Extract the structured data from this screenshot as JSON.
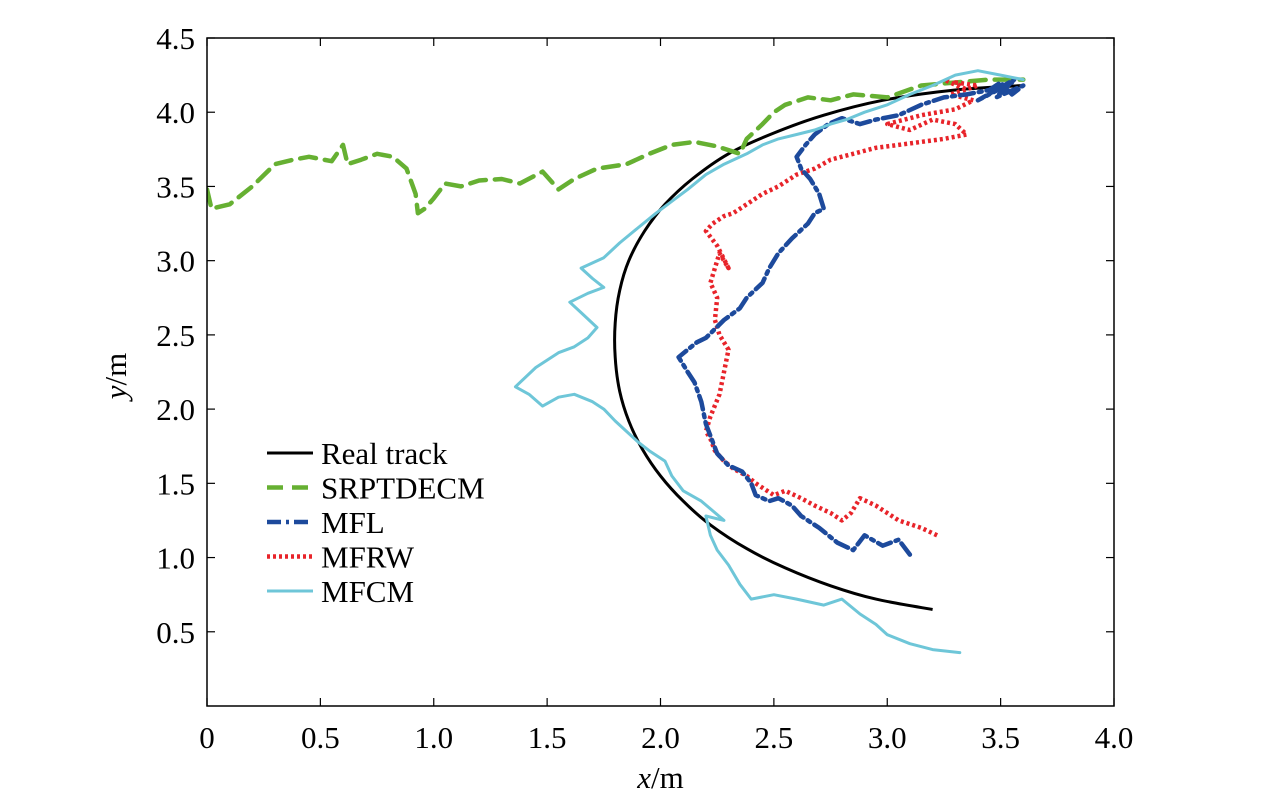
{
  "chart_data": {
    "type": "line",
    "title": "",
    "xlabel_var": "x",
    "xlabel_unit": "/m",
    "ylabel_var": "y",
    "ylabel_unit": "/m",
    "xlim": [
      0,
      4.0
    ],
    "ylim": [
      0,
      4.5
    ],
    "xticks": [
      0,
      0.5,
      1.0,
      1.5,
      2.0,
      2.5,
      3.0,
      3.5,
      4.0
    ],
    "xtick_labels": [
      "0",
      "0.5",
      "1.0",
      "1.5",
      "2.0",
      "2.5",
      "3.0",
      "3.5",
      "4.0"
    ],
    "yticks": [
      0.5,
      1.0,
      1.5,
      2.0,
      2.5,
      3.0,
      3.5,
      4.0,
      4.5
    ],
    "ytick_labels": [
      "0.5",
      "1.0",
      "1.5",
      "2.0",
      "2.5",
      "3.0",
      "3.5",
      "4.0",
      "4.5"
    ],
    "grid": false,
    "legend_position": "bottom-left",
    "series": [
      {
        "name": "Real track",
        "color": "#000000",
        "style": "solid",
        "x": [
          3.2,
          2.95,
          2.75,
          2.55,
          2.38,
          2.22,
          2.1,
          2.0,
          1.92,
          1.86,
          1.82,
          1.8,
          1.8,
          1.82,
          1.86,
          1.93,
          2.02,
          2.14,
          2.3,
          2.5,
          2.72,
          2.98,
          3.3,
          3.6
        ],
        "y": [
          0.65,
          0.72,
          0.81,
          0.93,
          1.06,
          1.22,
          1.38,
          1.55,
          1.73,
          1.92,
          2.12,
          2.35,
          2.58,
          2.8,
          3.0,
          3.2,
          3.38,
          3.55,
          3.72,
          3.86,
          3.98,
          4.08,
          4.15,
          4.18
        ]
      },
      {
        "name": "SRPTDECM",
        "color": "#66b032",
        "style": "dashed",
        "x": [
          0.0,
          0.02,
          0.1,
          0.2,
          0.3,
          0.38,
          0.45,
          0.55,
          0.6,
          0.62,
          0.68,
          0.75,
          0.82,
          0.88,
          0.92,
          0.93,
          0.96,
          1.0,
          1.05,
          1.12,
          1.2,
          1.3,
          1.38,
          1.48,
          1.55,
          1.62,
          1.72,
          1.85,
          1.95,
          2.05,
          2.15,
          2.25,
          2.35,
          2.38,
          2.45,
          2.5,
          2.55,
          2.65,
          2.75,
          2.85,
          3.0,
          3.15,
          3.3,
          3.45,
          3.6
        ],
        "y": [
          3.48,
          3.35,
          3.38,
          3.5,
          3.65,
          3.68,
          3.7,
          3.67,
          3.78,
          3.65,
          3.68,
          3.72,
          3.7,
          3.62,
          3.45,
          3.32,
          3.35,
          3.42,
          3.52,
          3.5,
          3.54,
          3.55,
          3.52,
          3.6,
          3.48,
          3.55,
          3.62,
          3.65,
          3.72,
          3.78,
          3.8,
          3.77,
          3.72,
          3.82,
          3.92,
          4.0,
          4.05,
          4.1,
          4.08,
          4.12,
          4.1,
          4.18,
          4.2,
          4.22,
          4.22
        ]
      },
      {
        "name": "MFL",
        "color": "#1d4a9c",
        "style": "dashdot",
        "x": [
          3.1,
          3.05,
          2.98,
          2.9,
          2.85,
          2.78,
          2.7,
          2.62,
          2.58,
          2.52,
          2.48,
          2.42,
          2.4,
          2.36,
          2.3,
          2.25,
          2.2,
          2.18,
          2.15,
          2.12,
          2.1,
          2.08,
          2.12,
          2.16,
          2.2,
          2.28,
          2.35,
          2.38,
          2.45,
          2.48,
          2.52,
          2.58,
          2.65,
          2.68,
          2.72,
          2.7,
          2.66,
          2.62,
          2.6,
          2.64,
          2.68,
          2.74,
          2.8,
          2.88,
          2.95,
          3.05,
          3.15,
          3.25,
          3.35,
          3.45,
          3.5,
          3.55,
          3.6,
          3.48,
          3.56,
          3.4,
          3.55
        ],
        "y": [
          1.02,
          1.12,
          1.08,
          1.15,
          1.05,
          1.1,
          1.2,
          1.28,
          1.35,
          1.4,
          1.38,
          1.42,
          1.5,
          1.58,
          1.62,
          1.7,
          1.9,
          2.05,
          2.18,
          2.25,
          2.3,
          2.35,
          2.4,
          2.45,
          2.48,
          2.6,
          2.68,
          2.75,
          2.85,
          2.95,
          3.05,
          3.15,
          3.25,
          3.32,
          3.35,
          3.45,
          3.55,
          3.62,
          3.7,
          3.78,
          3.85,
          3.92,
          3.96,
          3.92,
          3.95,
          3.98,
          4.05,
          4.1,
          4.12,
          4.15,
          4.2,
          4.12,
          4.18,
          4.1,
          4.22,
          4.08,
          4.2
        ]
      },
      {
        "name": "MFRW",
        "color": "#e8242a",
        "style": "dotted",
        "x": [
          3.22,
          3.15,
          3.05,
          2.95,
          2.88,
          2.84,
          2.8,
          2.75,
          2.68,
          2.62,
          2.55,
          2.5,
          2.42,
          2.38,
          2.32,
          2.28,
          2.24,
          2.22,
          2.2,
          2.22,
          2.26,
          2.28,
          2.3,
          2.26,
          2.24,
          2.25,
          2.22,
          2.24,
          2.26,
          2.28,
          2.3,
          2.25,
          2.2,
          2.23,
          2.28,
          2.32,
          2.38,
          2.45,
          2.52,
          2.6,
          2.68,
          2.75,
          2.85,
          2.95,
          3.05,
          3.15,
          3.25,
          3.35,
          3.3,
          3.2,
          3.1,
          3.0,
          3.15,
          3.3,
          3.38,
          3.28,
          3.4,
          3.3,
          3.35,
          3.25
        ],
        "y": [
          1.15,
          1.2,
          1.25,
          1.35,
          1.4,
          1.3,
          1.25,
          1.3,
          1.35,
          1.4,
          1.45,
          1.42,
          1.5,
          1.55,
          1.6,
          1.65,
          1.72,
          1.8,
          1.85,
          1.95,
          2.1,
          2.25,
          2.4,
          2.5,
          2.6,
          2.75,
          2.85,
          2.95,
          3.05,
          3.0,
          2.95,
          3.1,
          3.2,
          3.25,
          3.3,
          3.32,
          3.38,
          3.45,
          3.5,
          3.58,
          3.62,
          3.68,
          3.72,
          3.76,
          3.78,
          3.8,
          3.82,
          3.85,
          3.92,
          3.95,
          3.88,
          3.92,
          3.98,
          4.02,
          4.08,
          4.12,
          4.18,
          4.2,
          4.15,
          4.22
        ]
      },
      {
        "name": "MFCM",
        "color": "#6ec6d8",
        "style": "solid",
        "x": [
          3.32,
          3.2,
          3.1,
          3.0,
          2.95,
          2.88,
          2.8,
          2.72,
          2.6,
          2.5,
          2.4,
          2.35,
          2.3,
          2.25,
          2.22,
          2.2,
          2.28,
          2.18,
          2.1,
          2.05,
          2.02,
          1.95,
          1.9,
          1.85,
          1.8,
          1.75,
          1.7,
          1.62,
          1.55,
          1.48,
          1.42,
          1.36,
          1.45,
          1.55,
          1.62,
          1.68,
          1.72,
          1.65,
          1.6,
          1.68,
          1.75,
          1.7,
          1.65,
          1.75,
          1.82,
          1.9,
          1.98,
          2.05,
          2.12,
          2.2,
          2.28,
          2.38,
          2.45,
          2.52,
          2.6,
          2.68,
          2.75,
          2.82,
          2.9,
          3.0,
          3.1,
          3.2,
          3.3,
          3.4,
          3.5,
          3.6
        ],
        "y": [
          0.36,
          0.38,
          0.42,
          0.48,
          0.55,
          0.62,
          0.72,
          0.68,
          0.72,
          0.75,
          0.72,
          0.82,
          0.95,
          1.05,
          1.15,
          1.28,
          1.25,
          1.38,
          1.45,
          1.55,
          1.65,
          1.72,
          1.78,
          1.85,
          1.92,
          2.0,
          2.05,
          2.1,
          2.08,
          2.02,
          2.1,
          2.15,
          2.28,
          2.38,
          2.42,
          2.48,
          2.55,
          2.65,
          2.72,
          2.78,
          2.82,
          2.88,
          2.95,
          3.02,
          3.12,
          3.22,
          3.32,
          3.4,
          3.48,
          3.58,
          3.65,
          3.72,
          3.78,
          3.82,
          3.85,
          3.88,
          3.92,
          3.95,
          4.0,
          4.05,
          4.12,
          4.18,
          4.25,
          4.28,
          4.25,
          4.22
        ]
      }
    ]
  }
}
